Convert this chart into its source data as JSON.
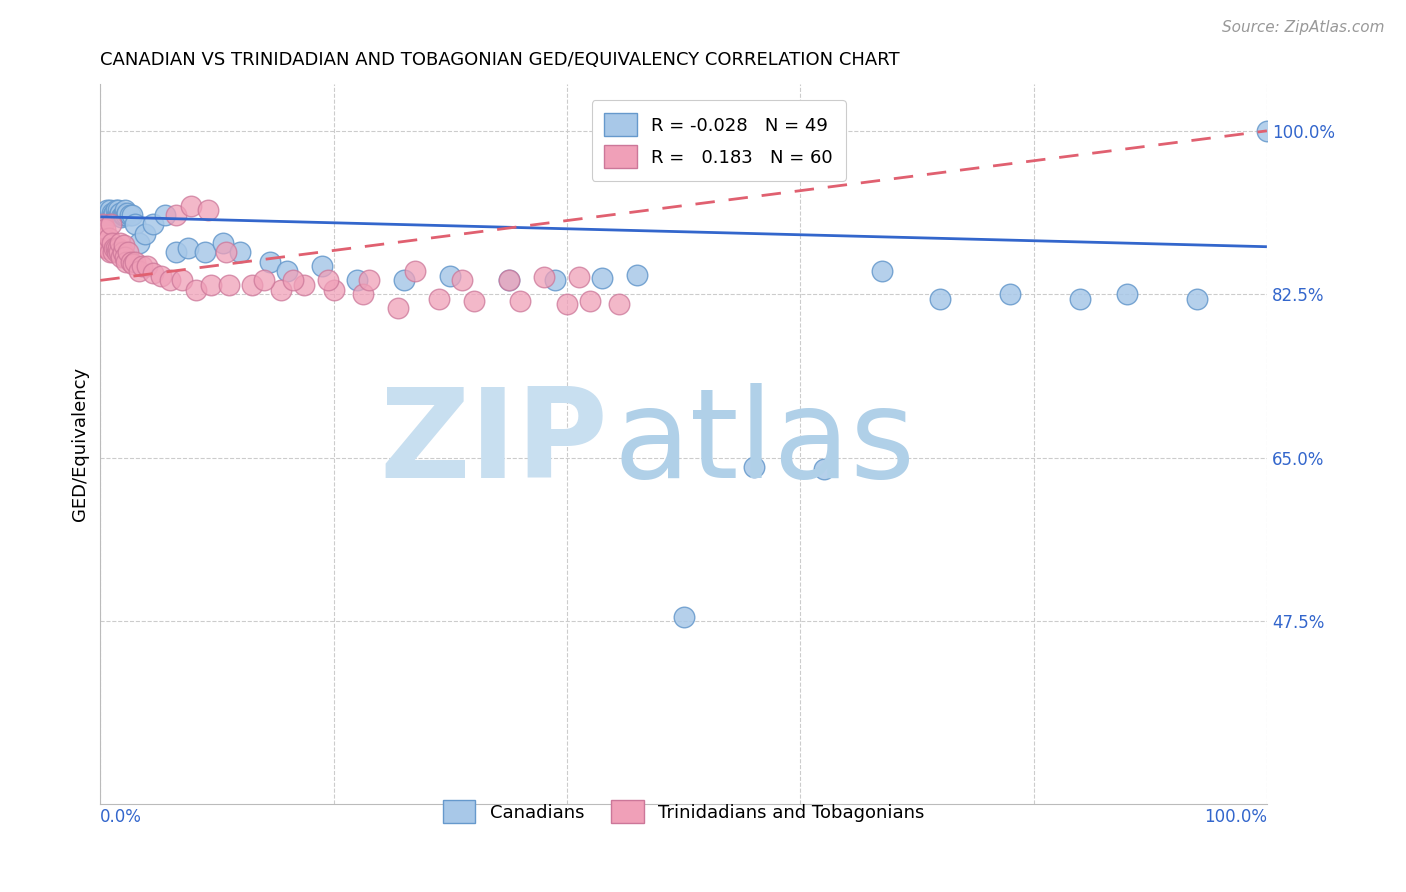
{
  "title": "CANADIAN VS TRINIDADIAN AND TOBAGONIAN GED/EQUIVALENCY CORRELATION CHART",
  "source": "Source: ZipAtlas.com",
  "ylabel": "GED/Equivalency",
  "r1": "-0.028",
  "n1": "49",
  "r2": "0.183",
  "n2": "60",
  "color_blue": "#A8C8E8",
  "color_pink": "#F0A0B8",
  "edge_blue": "#6699CC",
  "edge_pink": "#CC7799",
  "line_blue": "#3366CC",
  "line_pink": "#E06070",
  "legend_label1": "Canadians",
  "legend_label2": "Trinidadians and Tobagonians",
  "ytick_vals": [
    1.0,
    0.825,
    0.65,
    0.475
  ],
  "ytick_labels": [
    "100.0%",
    "82.5%",
    "65.0%",
    "47.5%"
  ],
  "blue_x": [
    0.004,
    0.006,
    0.008,
    0.01,
    0.011,
    0.012,
    0.013,
    0.014,
    0.015,
    0.016,
    0.017,
    0.018,
    0.019,
    0.02,
    0.021,
    0.022,
    0.023,
    0.025,
    0.027,
    0.03,
    0.033,
    0.038,
    0.045,
    0.055,
    0.065,
    0.075,
    0.09,
    0.105,
    0.12,
    0.145,
    0.16,
    0.19,
    0.22,
    0.26,
    0.3,
    0.35,
    0.39,
    0.43,
    0.46,
    0.5,
    0.56,
    0.62,
    0.67,
    0.72,
    0.78,
    0.84,
    0.88,
    0.94,
    1.0
  ],
  "blue_y": [
    0.91,
    0.915,
    0.915,
    0.912,
    0.91,
    0.912,
    0.915,
    0.91,
    0.915,
    0.91,
    0.912,
    0.908,
    0.91,
    0.91,
    0.915,
    0.91,
    0.912,
    0.91,
    0.91,
    0.9,
    0.88,
    0.89,
    0.9,
    0.91,
    0.87,
    0.875,
    0.87,
    0.88,
    0.87,
    0.86,
    0.85,
    0.855,
    0.84,
    0.84,
    0.845,
    0.84,
    0.84,
    0.843,
    0.846,
    0.48,
    0.64,
    0.638,
    0.85,
    0.82,
    0.825,
    0.82,
    0.825,
    0.82,
    1.0
  ],
  "pink_x": [
    0.002,
    0.003,
    0.004,
    0.005,
    0.006,
    0.007,
    0.008,
    0.009,
    0.01,
    0.011,
    0.012,
    0.013,
    0.014,
    0.015,
    0.016,
    0.017,
    0.018,
    0.019,
    0.02,
    0.021,
    0.022,
    0.024,
    0.026,
    0.028,
    0.03,
    0.033,
    0.036,
    0.04,
    0.045,
    0.052,
    0.06,
    0.07,
    0.082,
    0.095,
    0.11,
    0.13,
    0.155,
    0.175,
    0.2,
    0.225,
    0.255,
    0.29,
    0.32,
    0.36,
    0.4,
    0.42,
    0.445,
    0.065,
    0.078,
    0.092,
    0.108,
    0.14,
    0.165,
    0.195,
    0.23,
    0.27,
    0.31,
    0.35,
    0.38,
    0.41
  ],
  "pink_y": [
    0.9,
    0.885,
    0.895,
    0.875,
    0.875,
    0.885,
    0.87,
    0.9,
    0.88,
    0.87,
    0.875,
    0.875,
    0.87,
    0.875,
    0.87,
    0.88,
    0.865,
    0.87,
    0.878,
    0.865,
    0.86,
    0.87,
    0.86,
    0.858,
    0.86,
    0.85,
    0.855,
    0.855,
    0.848,
    0.845,
    0.84,
    0.84,
    0.83,
    0.835,
    0.835,
    0.835,
    0.83,
    0.835,
    0.83,
    0.825,
    0.81,
    0.82,
    0.818,
    0.818,
    0.815,
    0.818,
    0.815,
    0.91,
    0.92,
    0.915,
    0.87,
    0.84,
    0.84,
    0.84,
    0.84,
    0.85,
    0.84,
    0.84,
    0.844,
    0.844
  ],
  "xmin": 0.0,
  "xmax": 1.0,
  "ymin": 0.28,
  "ymax": 1.05
}
